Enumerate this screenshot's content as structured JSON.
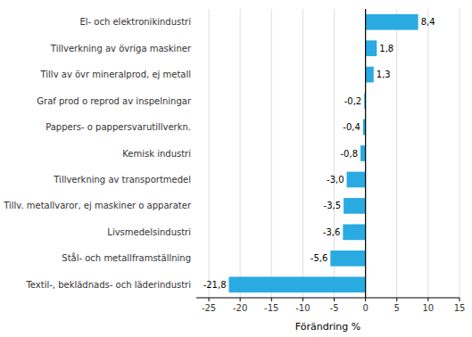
{
  "chart_data": {
    "type": "bar",
    "orientation": "horizontal",
    "categories": [
      "Textil-, beklädnads- och läderindustri",
      "Stål- och metallframställning",
      "Livsmedelsindustri",
      "Tillv. metallvaror, ej maskiner o apparater",
      "Tillverkning av transportmedel",
      "Kemisk industri",
      "Pappers- o pappersvarutillverkn.",
      "Graf prod o reprod av inspelningar",
      "Tillv av övr mineralprod, ej metall",
      "Tillverkning av övriga maskiner",
      "El- och elektronikindustri"
    ],
    "values": [
      -21.8,
      -5.6,
      -3.6,
      -3.5,
      -3.0,
      -0.8,
      -0.4,
      -0.2,
      1.3,
      1.8,
      8.4
    ],
    "value_labels": [
      "-21,8",
      "-5,6",
      "-3,6",
      "-3,5",
      "-3,0",
      "-0,8",
      "-0,4",
      "-0,2",
      "1,3",
      "1,8",
      "8,4"
    ],
    "data_labels": true,
    "color": "#29abe2",
    "xlabel": "Förändring %",
    "xlim": [
      -27,
      15
    ],
    "xticks": [
      -25,
      -20,
      -15,
      -10,
      -5,
      0,
      5,
      10,
      15
    ],
    "grid": true
  }
}
